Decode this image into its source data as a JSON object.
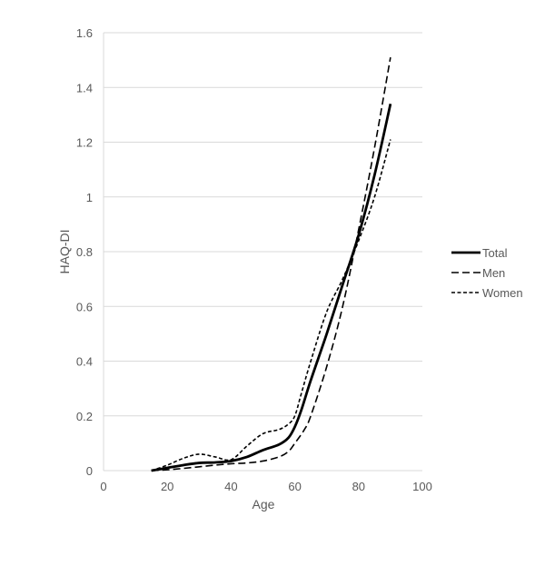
{
  "chart_data": {
    "type": "line",
    "title": "",
    "xlabel": "Age",
    "ylabel": "HAQ-DI",
    "xlim": [
      0,
      100
    ],
    "ylim": [
      0,
      1.6
    ],
    "x_ticks": [
      0,
      20,
      40,
      60,
      80,
      100
    ],
    "y_ticks": [
      0,
      0.2,
      0.4,
      0.6,
      0.8,
      1,
      1.2,
      1.4,
      1.6
    ],
    "x_tick_labels": [
      "0",
      "20",
      "40",
      "60",
      "80",
      "100"
    ],
    "y_tick_labels": [
      "0",
      "0.2",
      "0.4",
      "0.6",
      "0.8",
      "1",
      "1.2",
      "1.4",
      "1.6"
    ],
    "grid": "horizontal",
    "legend_position": "right",
    "series": [
      {
        "name": "Total",
        "style": "solid",
        "color": "#000000",
        "x": [
          15,
          20,
          25,
          30,
          35,
          40,
          45,
          50,
          55,
          58,
          60,
          62,
          65,
          70,
          75,
          80,
          85,
          90
        ],
        "y": [
          0,
          0.01,
          0.02,
          0.028,
          0.03,
          0.035,
          0.05,
          0.075,
          0.095,
          0.12,
          0.16,
          0.22,
          0.33,
          0.5,
          0.68,
          0.86,
          1.08,
          1.34
        ]
      },
      {
        "name": "Men",
        "style": "dashed",
        "color": "#000000",
        "x": [
          15,
          20,
          25,
          30,
          35,
          40,
          45,
          50,
          55,
          58,
          60,
          63,
          65,
          70,
          75,
          80,
          85,
          90
        ],
        "y": [
          0,
          0.003,
          0.008,
          0.014,
          0.02,
          0.025,
          0.028,
          0.035,
          0.05,
          0.07,
          0.1,
          0.15,
          0.2,
          0.38,
          0.6,
          0.88,
          1.18,
          1.51
        ]
      },
      {
        "name": "Women",
        "style": "dotted",
        "color": "#000000",
        "x": [
          15,
          20,
          25,
          30,
          35,
          40,
          45,
          50,
          55,
          58,
          60,
          62,
          65,
          70,
          75,
          80,
          85,
          90
        ],
        "y": [
          0,
          0.02,
          0.045,
          0.06,
          0.05,
          0.04,
          0.09,
          0.135,
          0.15,
          0.17,
          0.2,
          0.28,
          0.4,
          0.58,
          0.7,
          0.84,
          1.0,
          1.21
        ]
      }
    ]
  }
}
